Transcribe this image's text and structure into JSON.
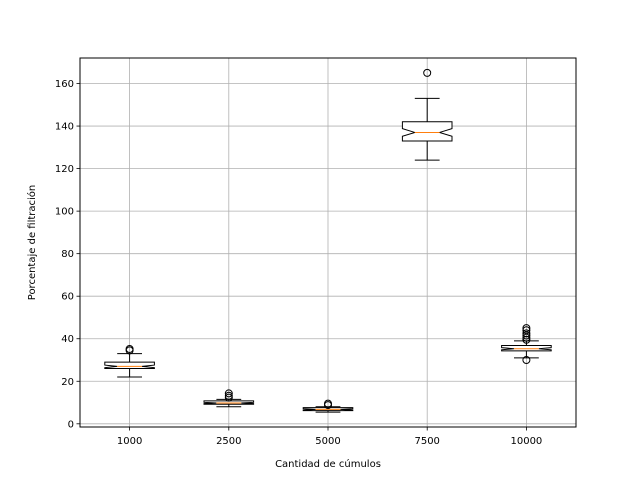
{
  "chart_data": {
    "type": "boxplot",
    "notched": true,
    "xlabel": "Cantidad de cúmulos",
    "ylabel": "Porcentaje de filtración",
    "ylim": [
      -1.5,
      172
    ],
    "yticks": [
      0,
      20,
      40,
      60,
      80,
      100,
      120,
      140,
      160
    ],
    "grid": true,
    "categories": [
      "1000",
      "2500",
      "5000",
      "7500",
      "10000"
    ],
    "boxes": [
      {
        "category": "1000",
        "whisker_low": 22,
        "q1": 26,
        "median": 27,
        "q3": 29,
        "whisker_high": 33,
        "notch_low": 26.4,
        "notch_high": 27.6,
        "fliers": [
          34.5,
          35.2
        ]
      },
      {
        "category": "2500",
        "whisker_low": 8,
        "q1": 9.2,
        "median": 9.8,
        "q3": 10.8,
        "whisker_high": 11.5,
        "notch_low": 9.5,
        "notch_high": 10.1,
        "fliers": [
          12.3,
          13.2,
          14.3
        ]
      },
      {
        "category": "5000",
        "whisker_low": 5.5,
        "q1": 6.2,
        "median": 6.8,
        "q3": 7.6,
        "whisker_high": 8,
        "notch_low": 6.5,
        "notch_high": 7.1,
        "fliers": [
          8.8,
          9.5
        ]
      },
      {
        "category": "7500",
        "whisker_low": 124,
        "q1": 133,
        "median": 137,
        "q3": 142,
        "whisker_high": 153,
        "notch_low": 135.2,
        "notch_high": 138.8,
        "fliers": [
          165
        ]
      },
      {
        "category": "10000",
        "whisker_low": 31,
        "q1": 34.3,
        "median": 35.3,
        "q3": 36.8,
        "whisker_high": 39,
        "notch_low": 34.8,
        "notch_high": 35.8,
        "fliers": [
          30,
          39.5,
          40.5,
          41.5,
          42.5,
          44,
          45
        ]
      }
    ],
    "colors": {
      "box": "#000000",
      "median": "#ff7f0e",
      "grid": "#b0b0b0"
    }
  }
}
